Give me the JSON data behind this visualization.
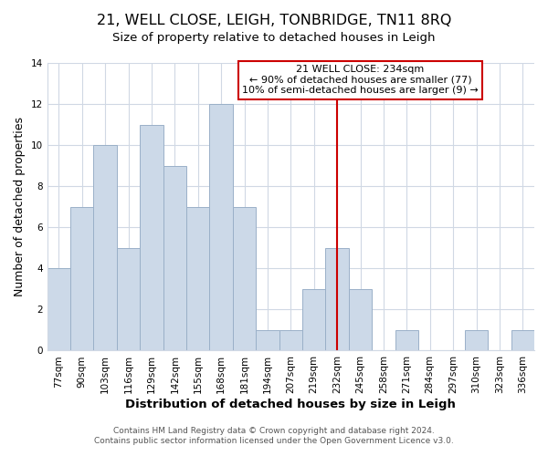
{
  "title": "21, WELL CLOSE, LEIGH, TONBRIDGE, TN11 8RQ",
  "subtitle": "Size of property relative to detached houses in Leigh",
  "xlabel": "Distribution of detached houses by size in Leigh",
  "ylabel": "Number of detached properties",
  "bar_labels": [
    "77sqm",
    "90sqm",
    "103sqm",
    "116sqm",
    "129sqm",
    "142sqm",
    "155sqm",
    "168sqm",
    "181sqm",
    "194sqm",
    "207sqm",
    "219sqm",
    "232sqm",
    "245sqm",
    "258sqm",
    "271sqm",
    "284sqm",
    "297sqm",
    "310sqm",
    "323sqm",
    "336sqm"
  ],
  "bar_values": [
    4,
    7,
    10,
    5,
    11,
    9,
    7,
    12,
    7,
    1,
    1,
    3,
    5,
    3,
    0,
    1,
    0,
    0,
    1,
    0,
    1
  ],
  "bar_color": "#ccd9e8",
  "bar_edge_color": "#9ab0c8",
  "vline_x": 12,
  "vline_color": "#cc0000",
  "annotation_title": "21 WELL CLOSE: 234sqm",
  "annotation_line1": "← 90% of detached houses are smaller (77)",
  "annotation_line2": "10% of semi-detached houses are larger (9) →",
  "annotation_box_facecolor": "#ffffff",
  "annotation_box_edgecolor": "#cc0000",
  "ylim": [
    0,
    14
  ],
  "yticks": [
    0,
    2,
    4,
    6,
    8,
    10,
    12,
    14
  ],
  "footer1": "Contains HM Land Registry data © Crown copyright and database right 2024.",
  "footer2": "Contains public sector information licensed under the Open Government Licence v3.0.",
  "plot_bg_color": "#ffffff",
  "fig_bg_color": "#ffffff",
  "grid_color": "#d0d8e4",
  "title_fontsize": 11.5,
  "subtitle_fontsize": 9.5,
  "xlabel_fontsize": 9.5,
  "ylabel_fontsize": 9,
  "tick_fontsize": 7.5,
  "annotation_fontsize": 8,
  "footer_fontsize": 6.5
}
